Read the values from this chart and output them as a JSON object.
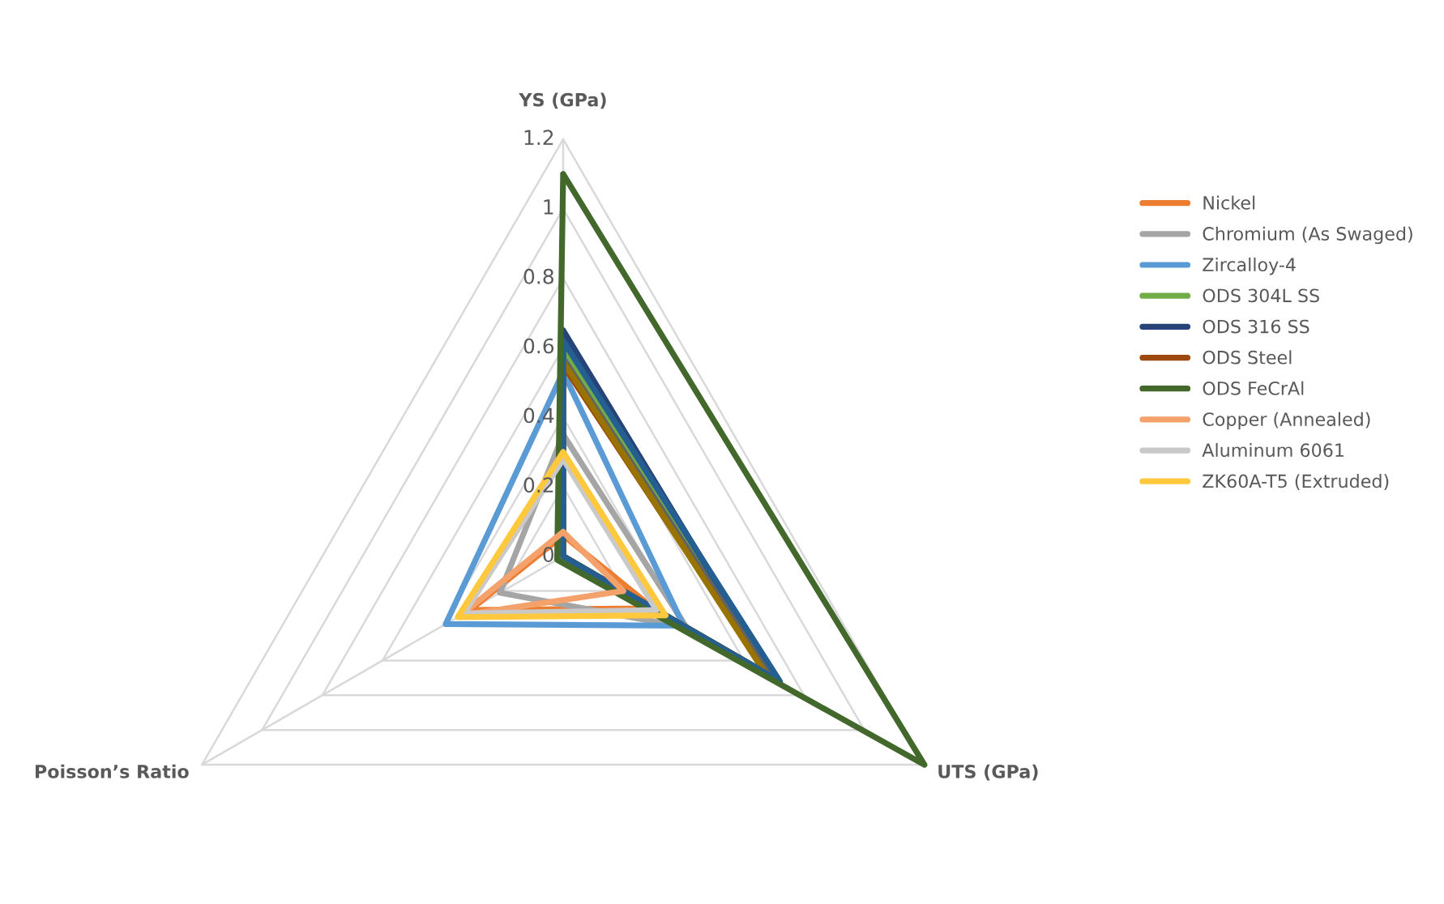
{
  "chart_data": {
    "type": "radar",
    "categories": [
      "YS (GPa)",
      "UTS (GPa)",
      "Poisson’s Ratio"
    ],
    "ylim": [
      0,
      1.2
    ],
    "yticks": [
      0,
      0.2,
      0.4,
      0.6,
      0.8,
      1,
      1.2
    ],
    "legend": "right",
    "grid": true,
    "series": [
      {
        "name": "Nickel",
        "color": "#ed7d31",
        "values": [
          0.06,
          0.3,
          0.31
        ]
      },
      {
        "name": "Chromium (As Swaged)",
        "color": "#a5a5a5",
        "values": [
          0.35,
          0.41,
          0.21
        ]
      },
      {
        "name": "Zircalloy-4",
        "color": "#5b9bd5",
        "values": [
          0.53,
          0.4,
          0.39
        ]
      },
      {
        "name": "ODS 304L SS",
        "color": "#70ad47",
        "values": [
          0.6,
          0.69,
          0
        ]
      },
      {
        "name": "ODS 316 SS",
        "color": "#264478",
        "values": [
          0.65,
          0.7,
          0
        ]
      },
      {
        "name": "ODS Steel",
        "color": "#9e480e",
        "values": [
          0.55,
          0.68,
          0
        ]
      },
      {
        "color": "#636363",
        "values": [
          0.57,
          0.69,
          0
        ]
      },
      {
        "color": "#997300",
        "values": [
          0.56,
          0.67,
          0
        ]
      },
      {
        "color": "#255e91",
        "values": [
          0.62,
          0.72,
          0
        ]
      },
      {
        "name": "ODS FeCrAl",
        "color": "#43682b",
        "values": [
          1.1,
          1.2,
          0.02
        ]
      },
      {
        "name": "Copper (Annealed)",
        "color": "#f4a16b",
        "values": [
          0.07,
          0.2,
          0.34
        ]
      },
      {
        "name": "Aluminum 6061",
        "color": "#c9c9c9",
        "values": [
          0.28,
          0.31,
          0.33
        ]
      },
      {
        "name": "ZK60A-T5 (Extruded)",
        "color": "#ffc83d",
        "values": [
          0.3,
          0.34,
          0.35
        ]
      }
    ]
  }
}
